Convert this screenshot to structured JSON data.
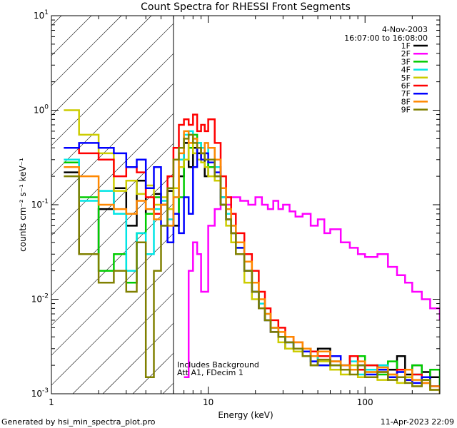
{
  "chart_data": {
    "type": "line",
    "title": "Count Spectra for RHESSI Front Segments",
    "xlabel": "Energy (keV)",
    "ylabel": "counts cm⁻² s⁻¹ keV⁻¹",
    "xscale": "log",
    "yscale": "log",
    "xlim": [
      1,
      300
    ],
    "ylim": [
      0.001,
      10
    ],
    "x_tick_labels": [
      {
        "value": 1,
        "label": "1"
      },
      {
        "value": 10,
        "label": "10"
      },
      {
        "value": 100,
        "label": "100"
      }
    ],
    "y_tick_labels": [
      {
        "value": 0.001,
        "base": "10",
        "exp": "-3"
      },
      {
        "value": 0.01,
        "base": "10",
        "exp": "-2"
      },
      {
        "value": 0.1,
        "base": "10",
        "exp": "-1"
      },
      {
        "value": 1,
        "base": "10",
        "exp": "0"
      },
      {
        "value": 10,
        "base": "10",
        "exp": "1"
      }
    ],
    "attenuator_shading_upto_keV": 6,
    "annotation_date": "4-Nov-2003",
    "annotation_time": "16:07:00 to 16:08:00",
    "annotation_note_1": "Includes Background",
    "annotation_note_2": "Att A1, FDecim 1",
    "legend_position": "top-right",
    "series": [
      {
        "name": "1F",
        "color": "#000000",
        "x": [
          1.2,
          1.5,
          2,
          2.5,
          3,
          3.5,
          4,
          4.5,
          5,
          5.5,
          6,
          6.5,
          7,
          7.5,
          8,
          8.5,
          9,
          9.5,
          10,
          11,
          12,
          13,
          14,
          15,
          17,
          19,
          21,
          23,
          25,
          28,
          31,
          35,
          40,
          45,
          50,
          60,
          70,
          80,
          90,
          100,
          120,
          140,
          160,
          180,
          200,
          230,
          260,
          300
        ],
        "values": [
          0.22,
          0.03,
          0.09,
          0.15,
          0.06,
          0.18,
          0.08,
          0.13,
          0.1,
          0.14,
          0.06,
          0.2,
          0.45,
          0.25,
          0.4,
          0.35,
          0.3,
          0.2,
          0.28,
          0.25,
          0.12,
          0.08,
          0.05,
          0.04,
          0.02,
          0.012,
          0.008,
          0.006,
          0.005,
          0.004,
          0.003,
          0.003,
          0.0025,
          0.002,
          0.003,
          0.002,
          0.0018,
          0.0025,
          0.002,
          0.0015,
          0.002,
          0.0018,
          0.0025,
          0.0016,
          0.002,
          0.0017,
          0.0015,
          0.0012
        ]
      },
      {
        "name": "2F",
        "color": "#ff00ff",
        "x": [
          7,
          7.5,
          8,
          8.5,
          9,
          10,
          11,
          12,
          14,
          16,
          18,
          20,
          22,
          24,
          26,
          28,
          30,
          33,
          36,
          40,
          45,
          50,
          55,
          60,
          70,
          80,
          90,
          100,
          120,
          140,
          160,
          180,
          200,
          230,
          260,
          300
        ],
        "values": [
          0.0015,
          0.02,
          0.04,
          0.03,
          0.012,
          0.06,
          0.09,
          0.1,
          0.12,
          0.11,
          0.1,
          0.12,
          0.1,
          0.09,
          0.11,
          0.09,
          0.1,
          0.085,
          0.075,
          0.08,
          0.06,
          0.07,
          0.05,
          0.055,
          0.04,
          0.035,
          0.03,
          0.028,
          0.03,
          0.022,
          0.018,
          0.015,
          0.012,
          0.01,
          0.008,
          0.006
        ]
      },
      {
        "name": "3F",
        "color": "#00cc00",
        "x": [
          1.2,
          1.5,
          2,
          2.5,
          3,
          3.5,
          4,
          4.5,
          5,
          5.5,
          6,
          6.5,
          7,
          7.5,
          8,
          8.5,
          9,
          9.5,
          10,
          11,
          12,
          13,
          14,
          15,
          17,
          19,
          21,
          23,
          25,
          28,
          31,
          35,
          40,
          45,
          50,
          60,
          70,
          80,
          90,
          100,
          120,
          140,
          160,
          180,
          200,
          230,
          260,
          300
        ],
        "values": [
          0.28,
          0.12,
          0.02,
          0.03,
          0.015,
          0.05,
          0.08,
          0.12,
          0.1,
          0.06,
          0.08,
          0.12,
          0.3,
          0.4,
          0.55,
          0.45,
          0.35,
          0.3,
          0.25,
          0.2,
          0.1,
          0.07,
          0.05,
          0.035,
          0.02,
          0.012,
          0.008,
          0.006,
          0.005,
          0.004,
          0.0035,
          0.003,
          0.003,
          0.0025,
          0.002,
          0.0022,
          0.002,
          0.0018,
          0.0025,
          0.002,
          0.0016,
          0.0022,
          0.0018,
          0.0015,
          0.002,
          0.0014,
          0.0018,
          0.0012
        ]
      },
      {
        "name": "4F",
        "color": "#00e5e5",
        "x": [
          1.2,
          1.5,
          2,
          2.5,
          3,
          3.5,
          4,
          4.5,
          5,
          5.5,
          6,
          6.5,
          7,
          7.5,
          8,
          8.5,
          9,
          9.5,
          10,
          11,
          12,
          13,
          14,
          15,
          17,
          19,
          21,
          23,
          25,
          28,
          31,
          35,
          40,
          45,
          50,
          60,
          70,
          80,
          90,
          100,
          120,
          140,
          160,
          180,
          200,
          230,
          260,
          300
        ],
        "values": [
          0.3,
          0.11,
          0.14,
          0.08,
          0.02,
          0.05,
          0.03,
          0.09,
          0.11,
          0.07,
          0.12,
          0.3,
          0.55,
          0.6,
          0.5,
          0.45,
          0.4,
          0.35,
          0.4,
          0.25,
          0.12,
          0.08,
          0.06,
          0.04,
          0.02,
          0.012,
          0.009,
          0.007,
          0.005,
          0.004,
          0.0035,
          0.003,
          0.0028,
          0.0022,
          0.0025,
          0.002,
          0.0018,
          0.0022,
          0.0016,
          0.0018,
          0.002,
          0.0015,
          0.0017,
          0.0014,
          0.0016,
          0.0013,
          0.0012,
          0.0011
        ]
      },
      {
        "name": "5F",
        "color": "#cccc00",
        "x": [
          1.2,
          1.5,
          2,
          2.5,
          3,
          3.5,
          4,
          4.5,
          5,
          5.5,
          6,
          6.5,
          7,
          7.5,
          8,
          8.5,
          9,
          9.5,
          10,
          11,
          12,
          13,
          14,
          15,
          17,
          19,
          21,
          23,
          25,
          28,
          31,
          35,
          40,
          45,
          50,
          60,
          70,
          80,
          90,
          100,
          120,
          140,
          160,
          180,
          200,
          230,
          260,
          300
        ],
        "values": [
          1.0,
          0.55,
          0.35,
          0.14,
          0.18,
          0.13,
          0.16,
          0.1,
          0.12,
          0.09,
          0.15,
          0.25,
          0.3,
          0.45,
          0.35,
          0.3,
          0.28,
          0.25,
          0.2,
          0.18,
          0.1,
          0.06,
          0.04,
          0.03,
          0.015,
          0.01,
          0.008,
          0.006,
          0.0045,
          0.0035,
          0.003,
          0.0028,
          0.0025,
          0.002,
          0.0022,
          0.0018,
          0.0016,
          0.002,
          0.0015,
          0.0017,
          0.0014,
          0.0016,
          0.0013,
          0.0015,
          0.0012,
          0.0014,
          0.0011,
          0.001
        ]
      },
      {
        "name": "6F",
        "color": "#ff0000",
        "x": [
          1.2,
          1.5,
          2,
          2.5,
          3,
          3.5,
          4,
          4.5,
          5,
          5.5,
          6,
          6.5,
          7,
          7.5,
          8,
          8.5,
          9,
          9.5,
          10,
          11,
          12,
          13,
          14,
          15,
          17,
          19,
          21,
          23,
          25,
          28,
          31,
          35,
          40,
          45,
          50,
          60,
          70,
          80,
          90,
          100,
          120,
          140,
          160,
          180,
          200,
          230,
          260,
          300
        ],
        "values": [
          0.4,
          0.35,
          0.3,
          0.2,
          0.25,
          0.22,
          0.12,
          0.08,
          0.1,
          0.2,
          0.4,
          0.7,
          0.8,
          0.7,
          0.9,
          0.6,
          0.7,
          0.6,
          0.8,
          0.45,
          0.2,
          0.12,
          0.08,
          0.05,
          0.03,
          0.02,
          0.012,
          0.008,
          0.006,
          0.005,
          0.004,
          0.0035,
          0.003,
          0.0028,
          0.0025,
          0.0022,
          0.002,
          0.0025,
          0.0018,
          0.002,
          0.0017,
          0.0015,
          0.0018,
          0.0014,
          0.0016,
          0.0013,
          0.0012,
          0.001
        ]
      },
      {
        "name": "7F",
        "color": "#0000ff",
        "x": [
          1.2,
          1.5,
          2,
          2.5,
          3,
          3.5,
          4,
          4.5,
          5,
          5.5,
          6,
          6.5,
          7,
          7.5,
          8,
          8.5,
          9,
          9.5,
          10,
          11,
          12,
          13,
          14,
          15,
          17,
          19,
          21,
          23,
          25,
          28,
          31,
          35,
          40,
          45,
          50,
          60,
          70,
          80,
          90,
          100,
          120,
          140,
          160,
          180,
          200,
          230,
          260,
          300
        ],
        "values": [
          0.4,
          0.45,
          0.4,
          0.35,
          0.25,
          0.3,
          0.15,
          0.25,
          0.06,
          0.04,
          0.08,
          0.05,
          0.12,
          0.08,
          0.25,
          0.4,
          0.3,
          0.35,
          0.28,
          0.22,
          0.1,
          0.07,
          0.05,
          0.035,
          0.02,
          0.012,
          0.008,
          0.006,
          0.0045,
          0.004,
          0.0035,
          0.003,
          0.0028,
          0.0022,
          0.002,
          0.0025,
          0.002,
          0.0018,
          0.002,
          0.0016,
          0.0018,
          0.0015,
          0.0017,
          0.0014,
          0.0013,
          0.0015,
          0.0012,
          0.0011
        ]
      },
      {
        "name": "8F",
        "color": "#ff8800",
        "x": [
          1.2,
          1.5,
          2,
          2.5,
          3,
          3.5,
          4,
          4.5,
          5,
          5.5,
          6,
          6.5,
          7,
          7.5,
          8,
          8.5,
          9,
          9.5,
          10,
          11,
          12,
          13,
          14,
          15,
          17,
          19,
          21,
          23,
          25,
          28,
          31,
          35,
          40,
          45,
          50,
          60,
          70,
          80,
          90,
          100,
          120,
          140,
          160,
          180,
          200,
          230,
          260,
          300
        ],
        "values": [
          0.25,
          0.2,
          0.1,
          0.09,
          0.08,
          0.11,
          0.09,
          0.07,
          0.1,
          0.06,
          0.12,
          0.35,
          0.6,
          0.45,
          0.5,
          0.4,
          0.35,
          0.45,
          0.4,
          0.3,
          0.15,
          0.09,
          0.06,
          0.04,
          0.025,
          0.015,
          0.01,
          0.007,
          0.005,
          0.0045,
          0.004,
          0.0035,
          0.003,
          0.0025,
          0.0028,
          0.0022,
          0.002,
          0.0018,
          0.0022,
          0.0017,
          0.0019,
          0.0016,
          0.0015,
          0.0018,
          0.0014,
          0.0013,
          0.0012,
          0.001
        ]
      },
      {
        "name": "9F",
        "color": "#808000",
        "x": [
          1.2,
          1.5,
          2,
          2.5,
          3,
          3.5,
          4,
          4.5,
          5,
          5.5,
          6,
          6.5,
          7,
          7.5,
          8,
          8.5,
          9,
          9.5,
          10,
          11,
          12,
          13,
          14,
          15,
          17,
          19,
          21,
          23,
          25,
          28,
          31,
          35,
          40,
          45,
          50,
          60,
          70,
          80,
          90,
          100,
          120,
          140,
          160,
          180,
          200,
          230,
          260,
          300
        ],
        "values": [
          0.2,
          0.03,
          0.015,
          0.02,
          0.012,
          0.04,
          0.0015,
          0.02,
          0.06,
          0.15,
          0.3,
          0.4,
          0.5,
          0.55,
          0.45,
          0.4,
          0.35,
          0.3,
          0.3,
          0.2,
          0.1,
          0.07,
          0.05,
          0.03,
          0.02,
          0.012,
          0.008,
          0.006,
          0.0045,
          0.004,
          0.0035,
          0.003,
          0.0025,
          0.002,
          0.0023,
          0.002,
          0.0018,
          0.0016,
          0.002,
          0.0015,
          0.0017,
          0.0014,
          0.0015,
          0.0013,
          0.0012,
          0.0014,
          0.0011,
          0.001
        ]
      }
    ]
  },
  "footer": {
    "generated_by": "Generated by hsi_min_spectra_plot.pro",
    "timestamp": "11-Apr-2023 22:09"
  }
}
